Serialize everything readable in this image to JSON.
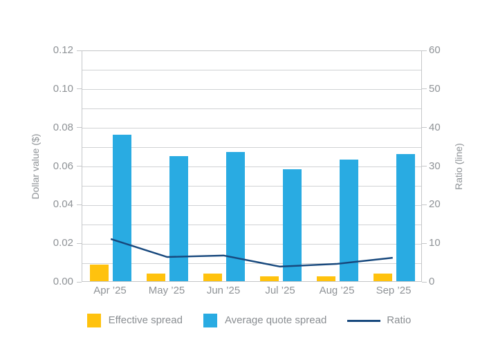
{
  "chart_data": {
    "type": "bar",
    "title": "",
    "categories": [
      "Apr ’25",
      "May ’25",
      "Jun ’25",
      "Jul ’25",
      "Aug ’25",
      "Sep ’25"
    ],
    "series": [
      {
        "name": "Effective spread",
        "type": "bar",
        "axis": "left",
        "color": "#FFC20E",
        "values": [
          0.0085,
          0.004,
          0.004,
          0.0025,
          0.0025,
          0.004
        ]
      },
      {
        "name": "Average quote spread",
        "type": "bar",
        "axis": "left",
        "color": "#29ABE2",
        "values": [
          0.076,
          0.065,
          0.067,
          0.058,
          0.063,
          0.066
        ]
      },
      {
        "name": "Ratio",
        "type": "line",
        "axis": "right",
        "color": "#17487D",
        "values": [
          11,
          6.3,
          6.7,
          3.8,
          4.5,
          6.1
        ]
      }
    ],
    "left_axis": {
      "label": "Dollar value ($)",
      "min": 0,
      "max": 0.12,
      "tick_step": 0.02,
      "grid_step": 0.01,
      "tick_labels": [
        "0.00",
        "0.02",
        "0.04",
        "0.06",
        "0.08",
        "0.10",
        "0.12"
      ]
    },
    "right_axis": {
      "label": "Ratio (line)",
      "min": 0,
      "max": 60,
      "tick_step": 10,
      "tick_labels": [
        "0",
        "10",
        "20",
        "30",
        "40",
        "50",
        "60"
      ]
    },
    "legend": [
      {
        "label": "Effective spread",
        "swatch": "square",
        "color": "#FFC20E"
      },
      {
        "label": "Average quote spread",
        "swatch": "square",
        "color": "#29ABE2"
      },
      {
        "label": "Ratio",
        "swatch": "line",
        "color": "#17487D"
      }
    ],
    "grid": true,
    "legend_position": "bottom",
    "xlabel": "",
    "ylabel": "Dollar value ($)",
    "ylabel_right": "Ratio (line)",
    "ylim_left": [
      0,
      0.12
    ],
    "ylim_right": [
      0,
      60
    ]
  }
}
